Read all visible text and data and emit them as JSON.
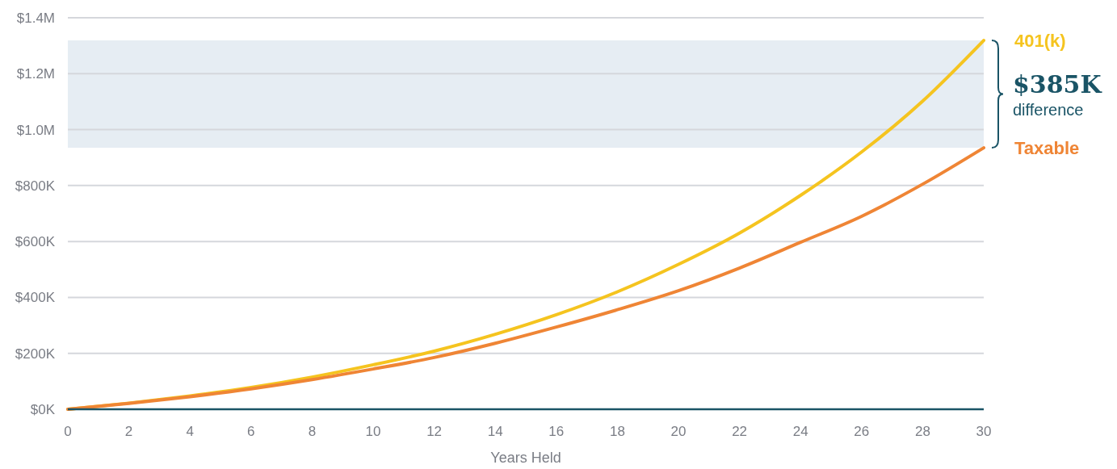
{
  "chart_data": {
    "type": "line",
    "x": [
      0,
      2,
      4,
      6,
      8,
      10,
      12,
      14,
      16,
      18,
      20,
      22,
      24,
      26,
      28,
      30
    ],
    "series": [
      {
        "name": "401(k)",
        "color": "#f5c41f",
        "values": [
          0,
          22000,
          48000,
          78000,
          115000,
          159000,
          208000,
          268000,
          338000,
          420000,
          518000,
          630000,
          765000,
          920000,
          1102000,
          1319000
        ]
      },
      {
        "name": "Taxable",
        "color": "#ef8535",
        "values": [
          0,
          21000,
          45000,
          73000,
          106000,
          144000,
          185000,
          236000,
          294000,
          356000,
          424000,
          505000,
          597000,
          690000,
          805000,
          935000
        ]
      }
    ],
    "xlabel": "Years Held",
    "xlim": [
      0,
      30
    ],
    "xticks": [
      0,
      2,
      4,
      6,
      8,
      10,
      12,
      14,
      16,
      18,
      20,
      22,
      24,
      26,
      28,
      30
    ],
    "ylim": [
      0,
      1400000
    ],
    "yticks": [
      {
        "value": 0,
        "label": "$0K"
      },
      {
        "value": 200000,
        "label": "$200K"
      },
      {
        "value": 400000,
        "label": "$400K"
      },
      {
        "value": 600000,
        "label": "$600K"
      },
      {
        "value": 800000,
        "label": "$800K"
      },
      {
        "value": 1000000,
        "label": "$1.0M"
      },
      {
        "value": 1200000,
        "label": "$1.2M"
      },
      {
        "value": 1400000,
        "label": "$1.4M"
      }
    ],
    "grid": "y",
    "marker": "none",
    "line_style": "solid",
    "bands": [
      {
        "axis": "y",
        "from": 935000,
        "to": 1319000,
        "color": "#e6edf3"
      }
    ],
    "annotations": [
      "$385K",
      "difference"
    ]
  }
}
